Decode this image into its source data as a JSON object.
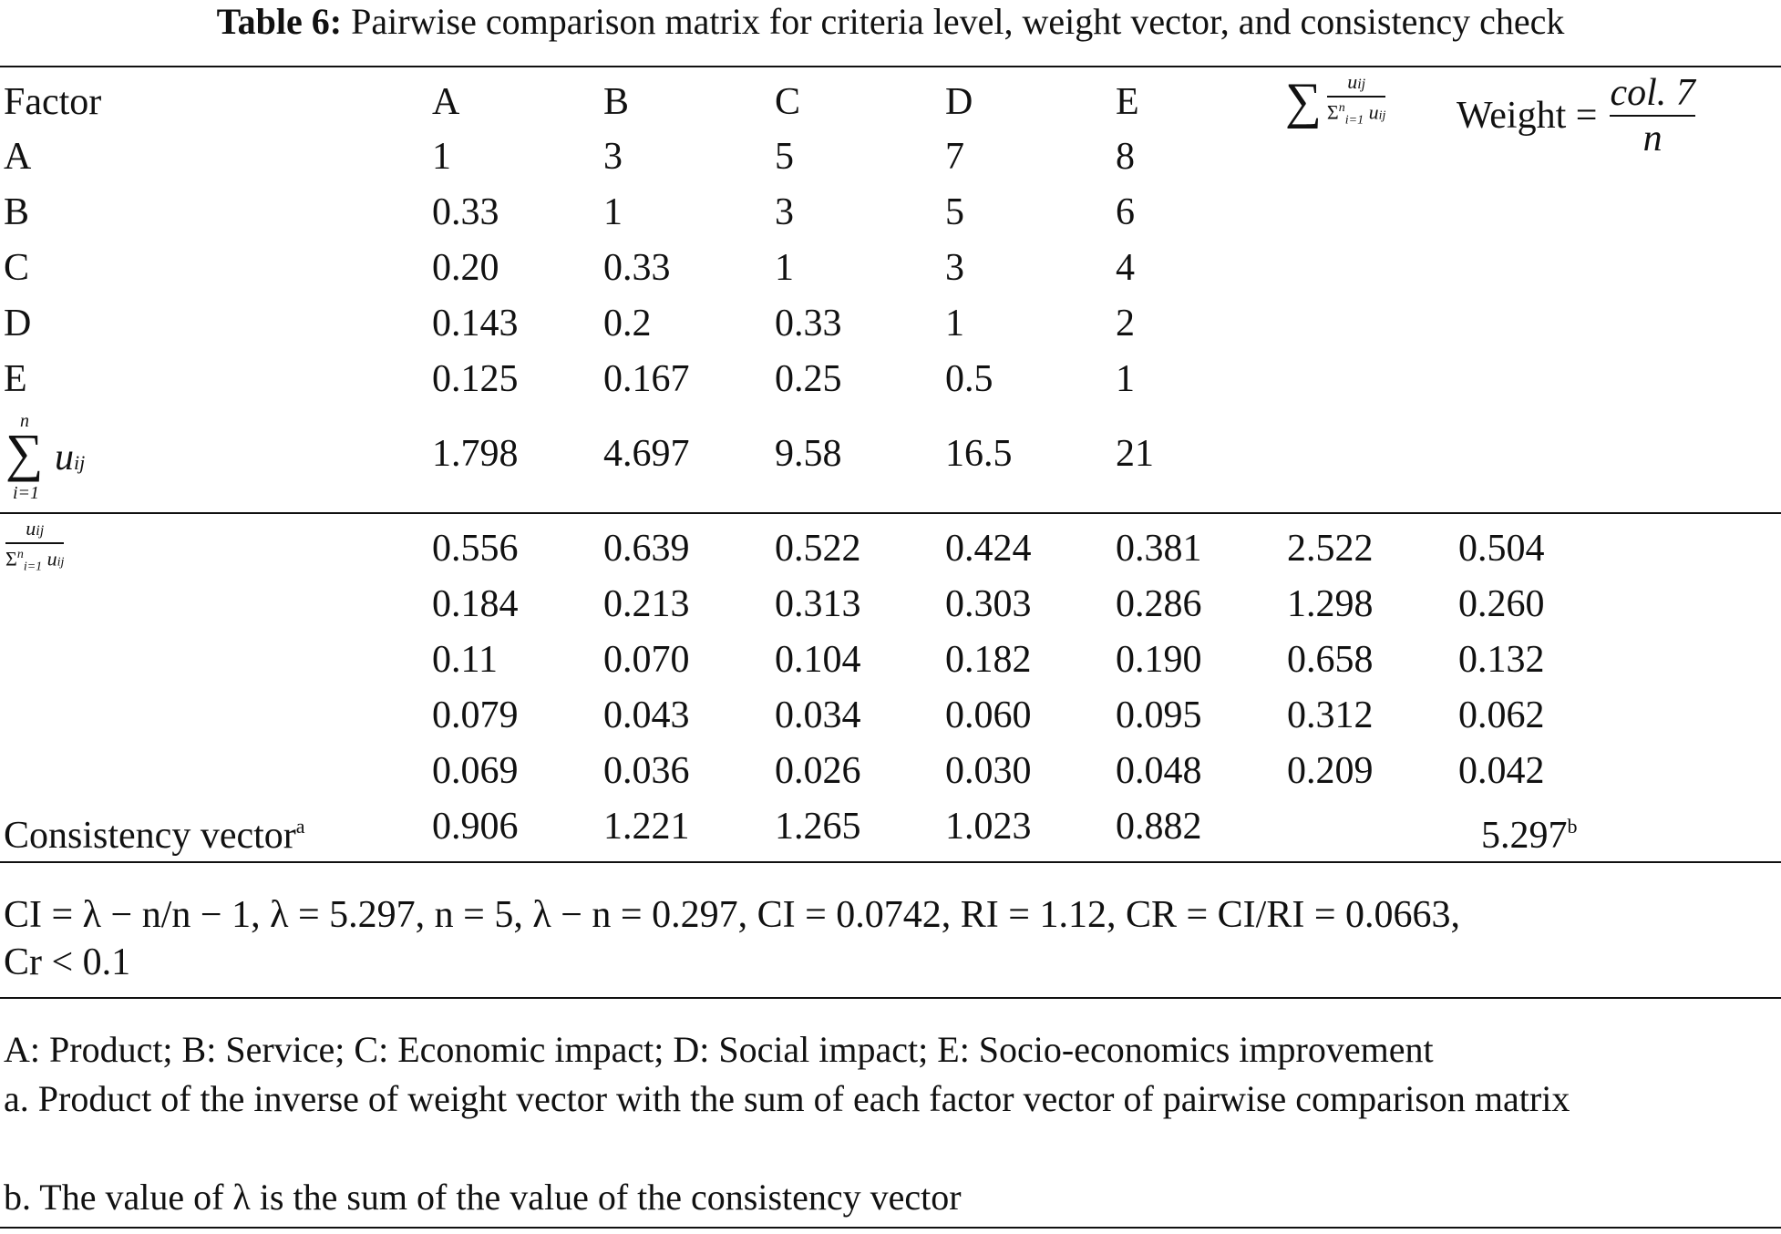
{
  "caption": {
    "label": "Table 6:",
    "text": "Pairwise comparison matrix for criteria level, weight vector, and consistency check"
  },
  "header": {
    "factor": "Factor",
    "cols": [
      "A",
      "B",
      "C",
      "D",
      "E"
    ],
    "col7_numerator": "u",
    "col7_num_sub": "ij",
    "col7_denominator": "Σ",
    "col7_den_sup": "n",
    "col7_den_sub": "i=1",
    "col7_den_u": "u",
    "col7_den_u_sub": "ij",
    "weight_label": "Weight =",
    "weight_num": "col. 7",
    "weight_den": "n",
    "sum_symbol": "∑"
  },
  "matrix": [
    {
      "label": "A",
      "values": [
        "1",
        "3",
        "5",
        "7",
        "8"
      ]
    },
    {
      "label": "B",
      "values": [
        "0.33",
        "1",
        "3",
        "5",
        "6"
      ]
    },
    {
      "label": "C",
      "values": [
        "0.20",
        "0.33",
        "1",
        "3",
        "4"
      ]
    },
    {
      "label": "D",
      "values": [
        "0.143",
        "0.2",
        "0.33",
        "1",
        "2"
      ]
    },
    {
      "label": "E",
      "values": [
        "0.125",
        "0.167",
        "0.25",
        "0.5",
        "1"
      ]
    }
  ],
  "sum_row": {
    "sigma": "∑",
    "upper": "n",
    "lower": "i=1",
    "u": "u",
    "u_sub": "ij",
    "values": [
      "1.798",
      "4.697",
      "9.58",
      "16.5",
      "21"
    ]
  },
  "normalized_label": {
    "num": "u",
    "num_sub": "ij",
    "den": "Σ",
    "den_sup": "n",
    "den_sub": "i=1",
    "den_u": "u",
    "den_u_sub": "ij"
  },
  "normalized": [
    {
      "values": [
        "0.556",
        "0.639",
        "0.522",
        "0.424",
        "0.381"
      ],
      "sum": "2.522",
      "weight": "0.504"
    },
    {
      "values": [
        "0.184",
        "0.213",
        "0.313",
        "0.303",
        "0.286"
      ],
      "sum": "1.298",
      "weight": "0.260"
    },
    {
      "values": [
        "0.11",
        "0.070",
        "0.104",
        "0.182",
        "0.190"
      ],
      "sum": "0.658",
      "weight": "0.132"
    },
    {
      "values": [
        "0.079",
        "0.043",
        "0.034",
        "0.060",
        "0.095"
      ],
      "sum": "0.312",
      "weight": "0.062"
    },
    {
      "values": [
        "0.069",
        "0.036",
        "0.026",
        "0.030",
        "0.048"
      ],
      "sum": "0.209",
      "weight": "0.042"
    }
  ],
  "consistency": {
    "label": "Consistency vector",
    "label_sup": "a",
    "values": [
      "0.906",
      "1.221",
      "1.265",
      "1.023",
      "0.882"
    ],
    "total": "5.297",
    "total_sup": "b"
  },
  "formula": {
    "line1": "CI = λ − n/n − 1, λ = 5.297, n = 5, λ − n = 0.297, CI = 0.0742, RI = 1.12, CR = CI/RI = 0.0663,",
    "line2": "Cr < 0.1"
  },
  "notes": [
    "A: Product; B: Service; C: Economic impact; D: Social impact; E: Socio-economics improvement",
    "a. Product of the inverse of weight vector with the sum of each factor vector of pairwise comparison matrix",
    "b. The value of λ is the sum of the value of the consistency vector"
  ]
}
